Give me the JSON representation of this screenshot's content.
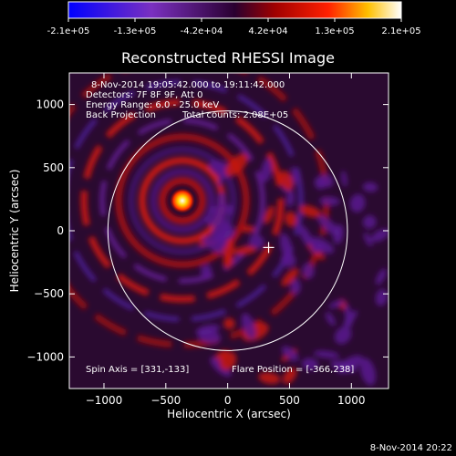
{
  "colorbar": {
    "ticks": [
      "-2.1e+05",
      "-1.3e+05",
      "-4.2e+04",
      "4.2e+04",
      "1.3e+05",
      "2.1e+05"
    ],
    "range": [
      -210000,
      210000
    ]
  },
  "annotations": {
    "time": "8-Nov-2014 19:05:42.000 to 19:11:42.000",
    "detectors": "Detectors: 7F 8F 9F, Att 0",
    "energy": "Energy Range: 6.0 - 25.0 keV",
    "method": "Back Projection",
    "counts": "Total counts: 2.08E+05",
    "spin_axis": "Spin Axis = [331,-133]",
    "flare_position": "Flare Position = [-366,238]"
  },
  "footer": {
    "timestamp": "8-Nov-2014 20:22"
  },
  "colors": {
    "sun_limb": "#ffffff",
    "background": "#000000"
  },
  "chart_data": {
    "type": "heatmap",
    "title": "Reconstructed RHESSI Image",
    "xlabel": "Heliocentric X (arcsec)",
    "ylabel": "Heliocentric Y (arcsec)",
    "xlim": [
      -1280,
      1300
    ],
    "ylim": [
      -1250,
      1250
    ],
    "xticks": [
      -1000,
      -500,
      0,
      500,
      1000
    ],
    "yticks": [
      -1000,
      -500,
      0,
      500,
      1000
    ],
    "sun_center": [
      0,
      0
    ],
    "sun_radius": 968,
    "sources": [
      {
        "x": -366,
        "y": 238,
        "label": "flare"
      }
    ],
    "markers": [
      {
        "x": 331,
        "y": -133,
        "symbol": "+"
      }
    ]
  }
}
